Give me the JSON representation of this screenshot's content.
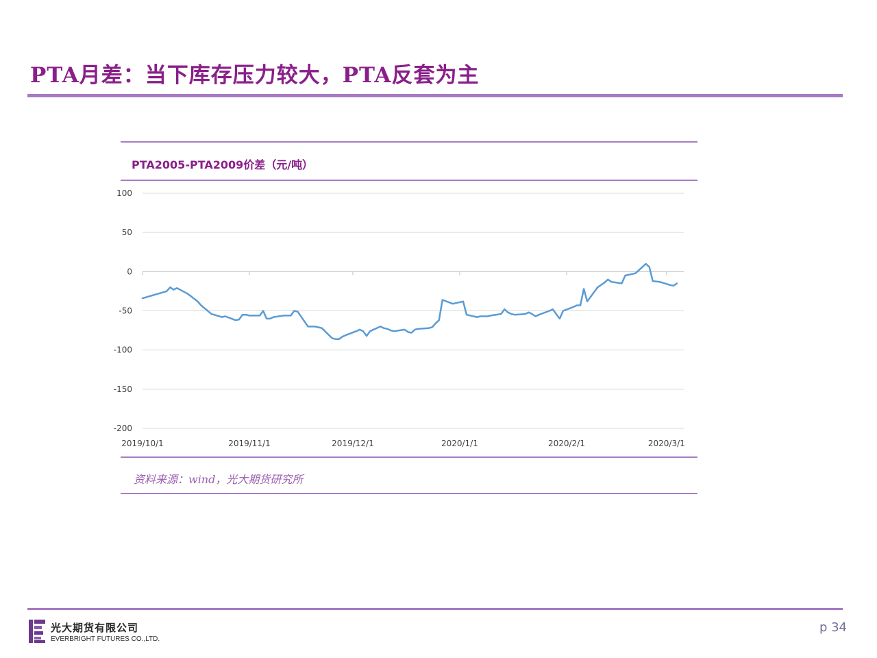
{
  "slide": {
    "title": "PTA月差：当下库存压力较大，PTA反套为主",
    "page": "p 34",
    "source": "资料来源：wind，光大期货研究所"
  },
  "logo": {
    "name_cn": "光大期货有限公司",
    "name_en": "EVERBRIGHT FUTURES CO.,LTD."
  },
  "colors": {
    "title": "#8a1f8a",
    "rule": "#a77bc4",
    "line": "#5b9bd5",
    "grid": "#d9d9d9"
  },
  "chart_data": {
    "type": "line",
    "title": "PTA2005-PTA2009价差（元/吨）",
    "ylim": [
      -200,
      100
    ],
    "yticks": [
      100,
      50,
      0,
      -50,
      -100,
      -150,
      -200
    ],
    "grid": true,
    "xlim": [
      "2019-10-01",
      "2020-03-06"
    ],
    "xticks": [
      {
        "date": "2019-10-01",
        "label": "2019/10/1"
      },
      {
        "date": "2019-11-01",
        "label": "2019/11/1"
      },
      {
        "date": "2019-12-01",
        "label": "2019/12/1"
      },
      {
        "date": "2020-01-01",
        "label": "2020/1/1"
      },
      {
        "date": "2020-02-01",
        "label": "2020/2/1"
      },
      {
        "date": "2020-03-01",
        "label": "2020/3/1"
      }
    ],
    "series": [
      {
        "points": [
          [
            "2019-10-01",
            -34
          ],
          [
            "2019-10-08",
            -25
          ],
          [
            "2019-10-09",
            -20
          ],
          [
            "2019-10-10",
            -23
          ],
          [
            "2019-10-11",
            -21
          ],
          [
            "2019-10-14",
            -28
          ],
          [
            "2019-10-17",
            -38
          ],
          [
            "2019-10-18",
            -43
          ],
          [
            "2019-10-21",
            -54
          ],
          [
            "2019-10-24",
            -58
          ],
          [
            "2019-10-25",
            -57
          ],
          [
            "2019-10-28",
            -62
          ],
          [
            "2019-10-29",
            -61
          ],
          [
            "2019-10-30",
            -55
          ],
          [
            "2019-10-31",
            -55
          ],
          [
            "2019-11-01",
            -56
          ],
          [
            "2019-11-04",
            -56
          ],
          [
            "2019-11-05",
            -50
          ],
          [
            "2019-11-06",
            -60
          ],
          [
            "2019-11-07",
            -60
          ],
          [
            "2019-11-08",
            -58
          ],
          [
            "2019-11-11",
            -56
          ],
          [
            "2019-11-12",
            -56
          ],
          [
            "2019-11-13",
            -56
          ],
          [
            "2019-11-14",
            -50
          ],
          [
            "2019-11-15",
            -51
          ],
          [
            "2019-11-18",
            -70
          ],
          [
            "2019-11-19",
            -70
          ],
          [
            "2019-11-20",
            -70
          ],
          [
            "2019-11-21",
            -71
          ],
          [
            "2019-11-22",
            -72
          ],
          [
            "2019-11-25",
            -85
          ],
          [
            "2019-11-26",
            -86
          ],
          [
            "2019-11-27",
            -86
          ],
          [
            "2019-11-28",
            -83
          ],
          [
            "2019-11-29",
            -81
          ],
          [
            "2019-12-02",
            -76
          ],
          [
            "2019-12-03",
            -74
          ],
          [
            "2019-12-04",
            -76
          ],
          [
            "2019-12-05",
            -82
          ],
          [
            "2019-12-06",
            -76
          ],
          [
            "2019-12-09",
            -70
          ],
          [
            "2019-12-10",
            -72
          ],
          [
            "2019-12-11",
            -73
          ],
          [
            "2019-12-12",
            -75
          ],
          [
            "2019-12-13",
            -76
          ],
          [
            "2019-12-16",
            -74
          ],
          [
            "2019-12-17",
            -77
          ],
          [
            "2019-12-18",
            -78
          ],
          [
            "2019-12-19",
            -74
          ],
          [
            "2019-12-20",
            -73
          ],
          [
            "2019-12-23",
            -72
          ],
          [
            "2019-12-24",
            -71
          ],
          [
            "2019-12-25",
            -66
          ],
          [
            "2019-12-26",
            -62
          ],
          [
            "2019-12-27",
            -36
          ],
          [
            "2019-12-30",
            -41
          ],
          [
            "2020-01-02",
            -38
          ],
          [
            "2020-01-03",
            -55
          ],
          [
            "2020-01-06",
            -58
          ],
          [
            "2020-01-07",
            -57
          ],
          [
            "2020-01-08",
            -57
          ],
          [
            "2020-01-09",
            -57
          ],
          [
            "2020-01-10",
            -56
          ],
          [
            "2020-01-13",
            -54
          ],
          [
            "2020-01-14",
            -48
          ],
          [
            "2020-01-15",
            -52
          ],
          [
            "2020-01-16",
            -54
          ],
          [
            "2020-01-17",
            -55
          ],
          [
            "2020-01-20",
            -54
          ],
          [
            "2020-01-21",
            -52
          ],
          [
            "2020-01-22",
            -54
          ],
          [
            "2020-01-23",
            -57
          ],
          [
            "2020-01-24",
            -55
          ],
          [
            "2020-01-27",
            -50
          ],
          [
            "2020-01-28",
            -48
          ],
          [
            "2020-01-29",
            -54
          ],
          [
            "2020-01-30",
            -60
          ],
          [
            "2020-01-31",
            -50
          ],
          [
            "2020-02-03",
            -45
          ],
          [
            "2020-02-04",
            -43
          ],
          [
            "2020-02-05",
            -43
          ],
          [
            "2020-02-06",
            -22
          ],
          [
            "2020-02-07",
            -38
          ],
          [
            "2020-02-10",
            -20
          ],
          [
            "2020-02-11",
            -17
          ],
          [
            "2020-02-12",
            -14
          ],
          [
            "2020-02-13",
            -10
          ],
          [
            "2020-02-14",
            -13
          ],
          [
            "2020-02-17",
            -15
          ],
          [
            "2020-02-18",
            -5
          ],
          [
            "2020-02-19",
            -4
          ],
          [
            "2020-02-20",
            -3
          ],
          [
            "2020-02-21",
            -2
          ],
          [
            "2020-02-24",
            10
          ],
          [
            "2020-02-25",
            6
          ],
          [
            "2020-02-26",
            -12
          ],
          [
            "2020-03-04",
            -15
          ],
          [
            "2020-02-28",
            -13
          ],
          [
            "2020-03-02",
            -17
          ],
          [
            "2020-03-03",
            -18
          ]
        ]
      }
    ]
  }
}
